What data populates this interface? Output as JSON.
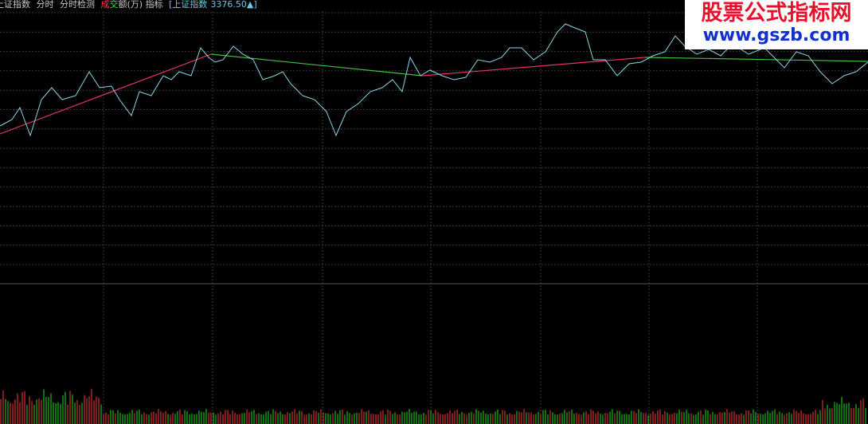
{
  "toolbar": {
    "index": "上证指数",
    "items": [
      "分时",
      "分时检测"
    ],
    "volume_label": {
      "part1": "成",
      "part2": "交",
      "part3": "额(万)"
    },
    "indicator": "指标",
    "quote": {
      "open": "[",
      "name": "上证指数",
      "value": "3376.50",
      "arrow": "▲",
      "close": "]"
    }
  },
  "watermark": {
    "title": "股票公式指标网",
    "url": "www.gszb.com"
  }
}
